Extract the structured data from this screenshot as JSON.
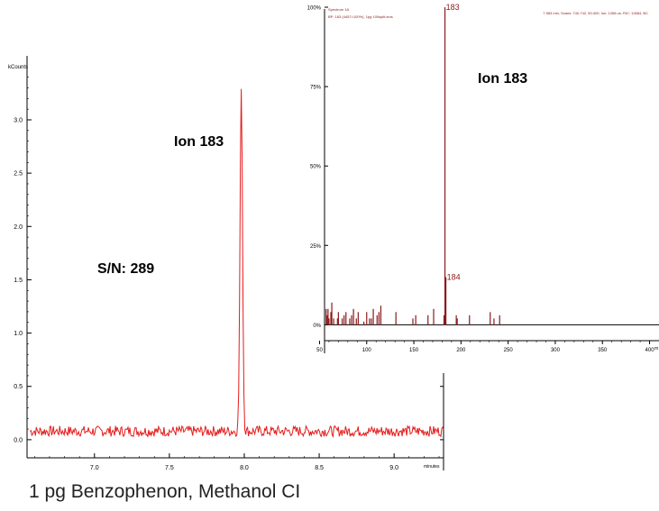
{
  "chart_data": [
    {
      "type": "line",
      "ylabel": "kCounts",
      "xunit": "minutes",
      "xlim": [
        6.55,
        9.33
      ],
      "ylim": [
        -0.17,
        3.6
      ],
      "xticks": [
        7.0,
        7.5,
        8.0,
        8.5,
        9.0
      ],
      "xtick_labels": [
        "7.0",
        "7.5",
        "8.0",
        "8.5",
        "9.0"
      ],
      "yticks": [
        0.0,
        0.5,
        1.0,
        1.5,
        2.0,
        2.5,
        3.0
      ],
      "ytick_labels": [
        "0.0",
        "0.5",
        "1.0",
        "1.5",
        "2.0",
        "2.5",
        "3.0"
      ],
      "color": "#e41c1c",
      "baseline": 0.08,
      "noise_amplitude": 0.05,
      "peak": {
        "x": 7.98,
        "y": 3.33
      },
      "annotations": {
        "ion": "Ion 183",
        "sn": "S/N: 289"
      },
      "grid": false
    },
    {
      "type": "bar",
      "title": "Spectrum 1A",
      "subtitle": "BP: 183 (4457=100%), 1pg 100split.sms",
      "header_right": "7.983 min, Scans: 740-742, 50:400, Ion: 1268 us, RIC: 12684, BC",
      "xunit": "m",
      "xlim": [
        40,
        410
      ],
      "ylim": [
        -5,
        100
      ],
      "xticks": [
        50,
        100,
        150,
        200,
        250,
        300,
        350,
        400
      ],
      "xtick_labels": [
        "50",
        "100",
        "150",
        "200",
        "250",
        "300",
        "350",
        "400"
      ],
      "yticks": [
        0,
        25,
        50,
        75,
        100
      ],
      "ytick_labels": [
        "0%",
        "25%",
        "50%",
        "75%",
        "100%"
      ],
      "color": "#8b1a1a",
      "mz": [
        57,
        58,
        59,
        60,
        62,
        63,
        65,
        69,
        70,
        74,
        76,
        78,
        82,
        84,
        86,
        89,
        91,
        97,
        100,
        103,
        105,
        107,
        111,
        113,
        115,
        131,
        149,
        152,
        165,
        171,
        182,
        183,
        184,
        195,
        196,
        209,
        231,
        235,
        241
      ],
      "intensity": [
        5,
        3,
        5,
        2,
        4,
        7,
        2,
        2,
        4,
        2,
        3,
        4,
        2,
        3,
        5,
        2,
        4,
        1,
        4,
        2,
        2,
        5,
        3,
        4,
        6,
        4,
        2,
        3,
        3,
        5,
        3,
        100,
        15,
        3,
        2,
        3,
        4,
        2,
        3
      ],
      "peak_labels": [
        {
          "mz": 183,
          "label": "183"
        },
        {
          "mz": 184,
          "label": "184"
        }
      ],
      "annotations": {
        "ion": "Ion 183"
      },
      "grid": false
    }
  ],
  "caption": "1 pg Benzophenon, Methanol CI"
}
